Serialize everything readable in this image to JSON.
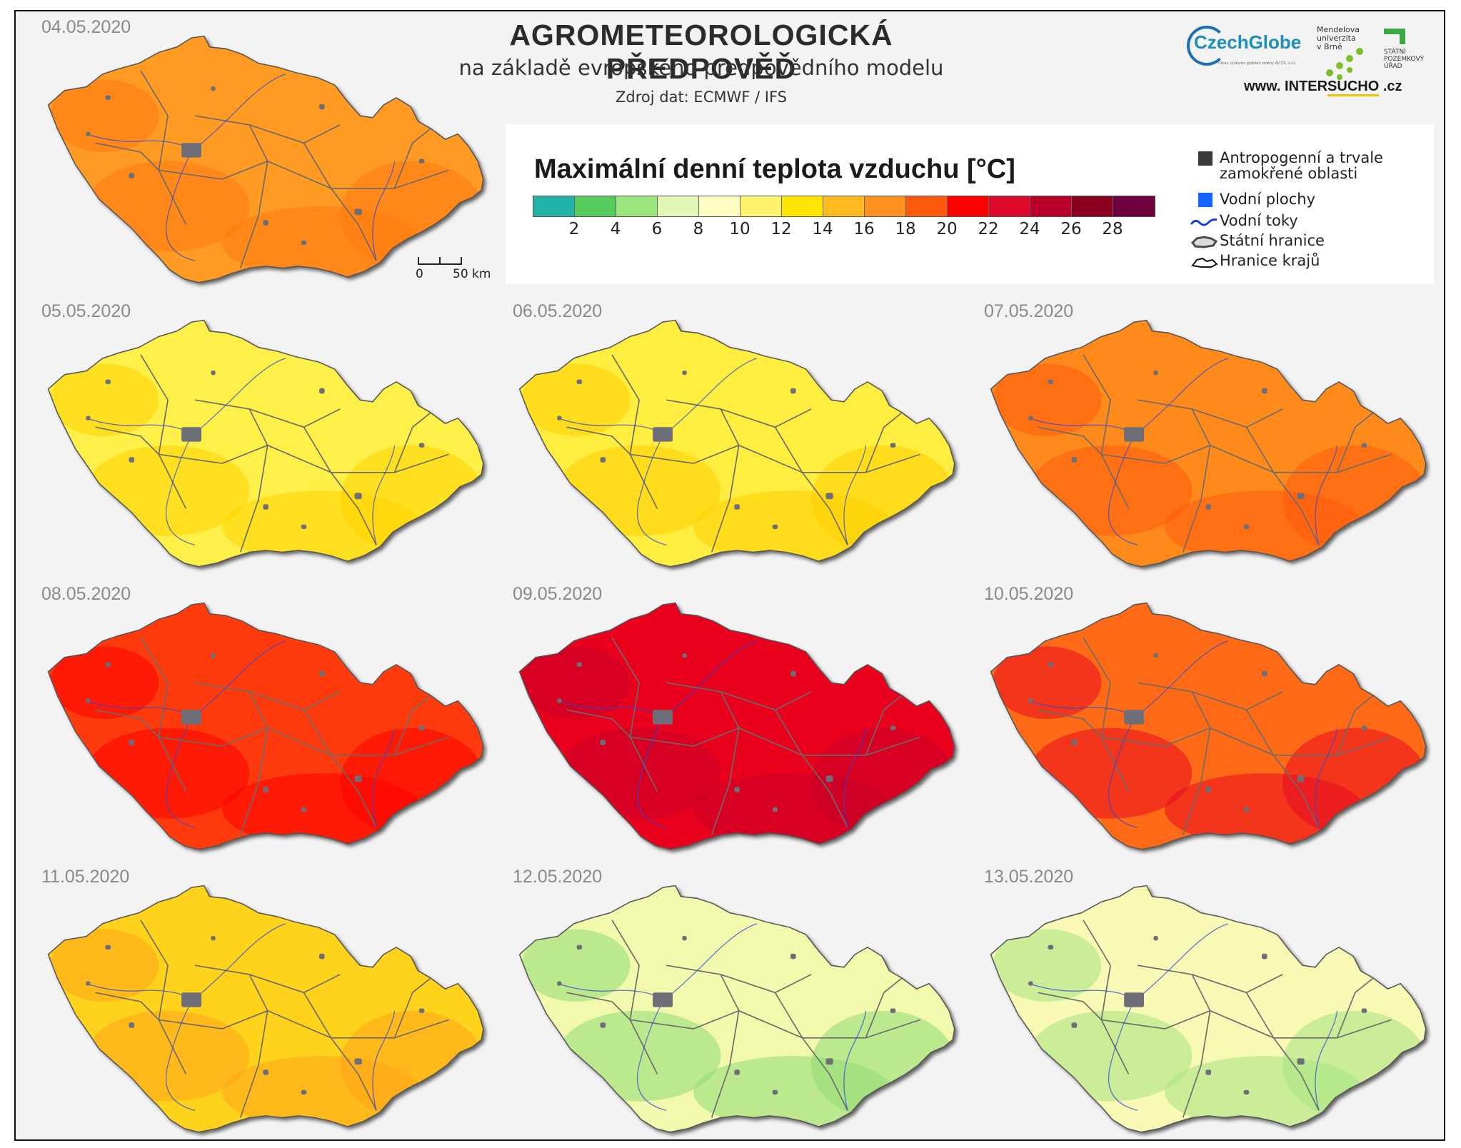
{
  "header": {
    "title": "AGROMETEOROLOGICKÁ  PŘEDPOVĚĎ",
    "subtitle": "na základě evropského předpovědního modelu",
    "source": "Zdroj dat: ECMWF / IFS"
  },
  "logos": {
    "czechglobe": "CzechGlobe",
    "czechglobe_sub": "Ústav výzkumu globální změny AV ČR, v.v.i.",
    "mendel": "Mendelova univerzita v Brně",
    "spu": "STÁTNÍ POZEMKOVÝ ÚŘAD",
    "site_prefix": "www. INTER",
    "site_accent": "SUCHO",
    "site_suffix": " .cz"
  },
  "legend": {
    "title": "Maximální denní teplota vzduchu [°C]",
    "colors": [
      "#21b3a5",
      "#56cc5c",
      "#9be67d",
      "#e2f7b6",
      "#ffffc2",
      "#fff36b",
      "#ffe500",
      "#ffba1f",
      "#ff9121",
      "#ff5a0d",
      "#ff0000",
      "#dc0a2a",
      "#b8002a",
      "#8c0020",
      "#6e0040"
    ],
    "tick_labels": [
      "2",
      "4",
      "6",
      "8",
      "10",
      "12",
      "14",
      "16",
      "18",
      "20",
      "22",
      "24",
      "26",
      "28"
    ],
    "keys": [
      {
        "icon": "urban-square-icon",
        "label": "Antropogenní a trvale zamokřené oblasti",
        "color": "#3a3a3a"
      },
      {
        "icon": "water-square-icon",
        "label": "Vodní plochy",
        "color": "#1565ff"
      },
      {
        "icon": "river-line-icon",
        "label": "Vodní toky",
        "color": "#1a3fd6"
      },
      {
        "icon": "state-border-icon",
        "label": "Státní hranice",
        "color": "#4d4d4d"
      },
      {
        "icon": "region-border-icon",
        "label": "Hranice krajů",
        "color": "#111111"
      }
    ]
  },
  "scalebar": {
    "start": "0",
    "end": "50 km"
  },
  "maps": [
    {
      "date": "04.05.2020",
      "fill": "#ff9a22",
      "accent": "#ff7a10"
    },
    {
      "date": "05.05.2020",
      "fill": "#fff04a",
      "accent": "#ffd400"
    },
    {
      "date": "06.05.2020",
      "fill": "#ffee40",
      "accent": "#ffd000"
    },
    {
      "date": "07.05.2020",
      "fill": "#ff8a1c",
      "accent": "#ff5a0d"
    },
    {
      "date": "08.05.2020",
      "fill": "#ff3a08",
      "accent": "#ff0000"
    },
    {
      "date": "09.05.2020",
      "fill": "#e8061a",
      "accent": "#c8002a"
    },
    {
      "date": "10.05.2020",
      "fill": "#ff6a12",
      "accent": "#e80a20"
    },
    {
      "date": "11.05.2020",
      "fill": "#ffd21c",
      "accent": "#ffa41a"
    },
    {
      "date": "12.05.2020",
      "fill": "#f2f9ad",
      "accent": "#8fdc74"
    },
    {
      "date": "13.05.2020",
      "fill": "#f7f9b4",
      "accent": "#a8e482"
    }
  ]
}
